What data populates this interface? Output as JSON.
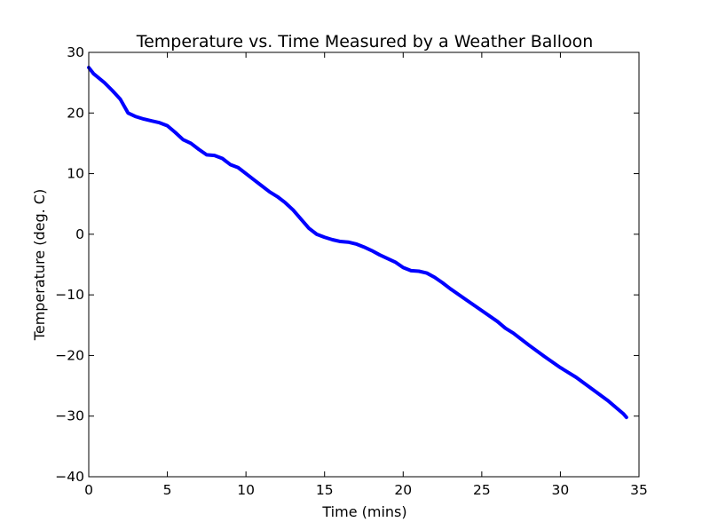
{
  "chart_data": {
    "type": "line",
    "title": "Temperature vs. Time Measured by a Weather Balloon",
    "xlabel": "Time (mins)",
    "ylabel": "Temperature (deg. C)",
    "xlim": [
      0,
      35
    ],
    "ylim": [
      -40,
      30
    ],
    "xticks": [
      "0",
      "5",
      "10",
      "15",
      "20",
      "25",
      "30",
      "35"
    ],
    "yticks": [
      "30",
      "20",
      "10",
      "0",
      "−10",
      "−20",
      "−30",
      "−40"
    ],
    "grid": false,
    "series": [
      {
        "color": "#0000ff",
        "x": [
          0.0,
          0.3,
          1.0,
          1.5,
          2.0,
          2.5,
          3.0,
          3.5,
          4.0,
          4.5,
          5.0,
          5.5,
          6.0,
          6.5,
          7.0,
          7.5,
          8.0,
          8.5,
          9.0,
          9.5,
          10.0,
          10.5,
          11.0,
          11.5,
          12.0,
          12.5,
          13.0,
          13.5,
          14.0,
          14.5,
          15.0,
          15.5,
          16.0,
          16.5,
          17.0,
          17.5,
          18.0,
          18.5,
          19.0,
          19.5,
          20.0,
          20.5,
          21.0,
          21.5,
          22.0,
          22.5,
          23.0,
          24.0,
          25.0,
          26.0,
          26.5,
          27.0,
          28.0,
          29.0,
          30.0,
          31.0,
          32.0,
          33.0,
          33.5,
          34.0,
          34.2
        ],
        "y": [
          27.5,
          26.5,
          25.0,
          23.7,
          22.3,
          20.0,
          19.4,
          19.0,
          18.7,
          18.4,
          17.9,
          16.8,
          15.6,
          15.0,
          14.0,
          13.1,
          13.0,
          12.5,
          11.5,
          11.0,
          10.0,
          9.0,
          8.0,
          7.0,
          6.2,
          5.2,
          4.0,
          2.5,
          1.0,
          0.0,
          -0.5,
          -0.9,
          -1.2,
          -1.3,
          -1.6,
          -2.1,
          -2.7,
          -3.4,
          -4.0,
          -4.6,
          -5.5,
          -6.0,
          -6.1,
          -6.4,
          -7.1,
          -8.0,
          -9.0,
          -10.8,
          -12.6,
          -14.4,
          -15.5,
          -16.3,
          -18.3,
          -20.2,
          -22.0,
          -23.6,
          -25.5,
          -27.4,
          -28.5,
          -29.6,
          -30.2
        ]
      }
    ]
  }
}
